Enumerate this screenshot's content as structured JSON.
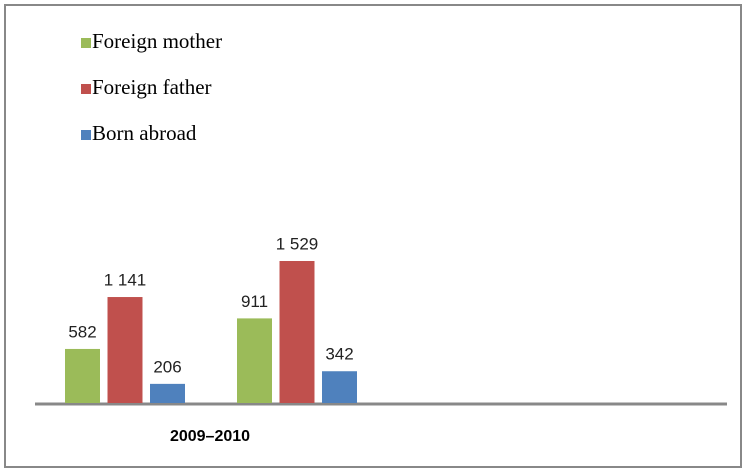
{
  "chart_data": {
    "type": "bar",
    "x_label": "2009–2010",
    "categories": [
      null,
      null
    ],
    "series": [
      {
        "name": "Foreign mother",
        "color": "#9bbb59",
        "values": [
          582,
          911
        ]
      },
      {
        "name": "Foreign father",
        "color": "#c0504d",
        "values": [
          1141,
          1529
        ],
        "value_labels": [
          "1 141",
          "1 529"
        ]
      },
      {
        "name": "Born abroad",
        "color": "#4f81bd",
        "values": [
          206,
          342
        ]
      }
    ]
  }
}
